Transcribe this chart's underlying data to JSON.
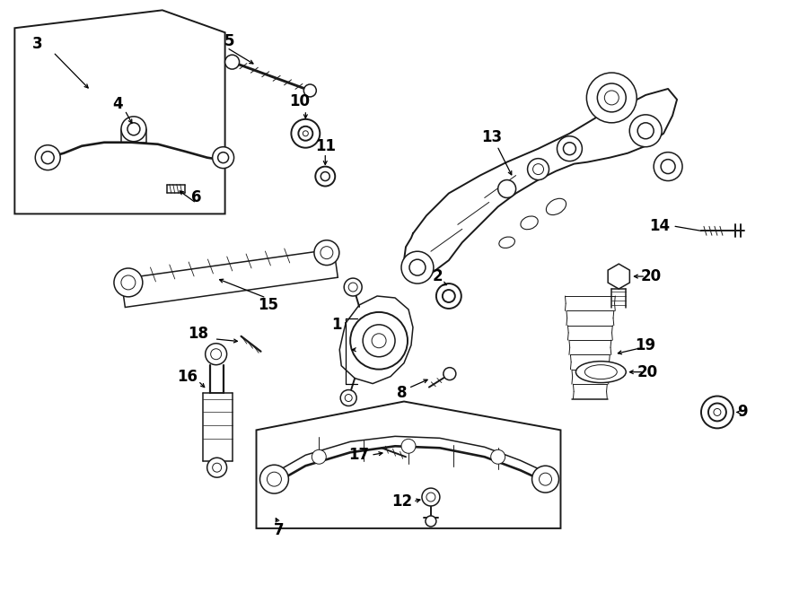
{
  "bg_color": "#ffffff",
  "line_color": "#1a1a1a",
  "fig_width": 9.0,
  "fig_height": 6.61,
  "dpi": 100,
  "lw": 1.1,
  "fs": 11
}
